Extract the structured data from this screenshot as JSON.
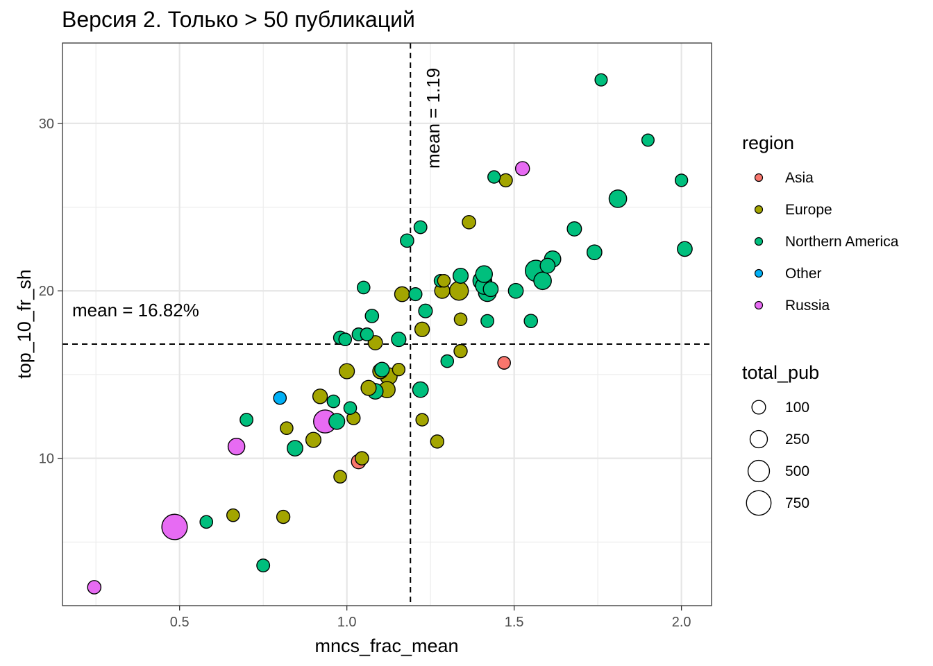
{
  "chart_data": {
    "type": "scatter",
    "title": "Версия 2. Только > 50 публикаций",
    "xlabel": "mncs_frac_mean",
    "ylabel": "top_10_fr_sh",
    "xlim": [
      0.15,
      2.09
    ],
    "ylim": [
      1.2,
      34.8
    ],
    "x_ticks": [
      0.5,
      1.0,
      1.5,
      2.0
    ],
    "x_tick_labels": [
      "0.5",
      "1.0",
      "1.5",
      "2.0"
    ],
    "y_ticks": [
      10,
      20,
      30
    ],
    "y_tick_labels": [
      "10",
      "20",
      "30"
    ],
    "grid": true,
    "mean_x": 1.19,
    "mean_y": 16.82,
    "annotations": {
      "mean_x_label": "mean = 1.19",
      "mean_y_label": "mean = 16.82%"
    },
    "color_legend": {
      "title": "region",
      "placement": "right",
      "entries": [
        {
          "name": "Asia",
          "color": "#F8766D"
        },
        {
          "name": "Europe",
          "color": "#A3A500"
        },
        {
          "name": "Northern America",
          "color": "#00BF7D"
        },
        {
          "name": "Other",
          "color": "#00B0F6"
        },
        {
          "name": "Russia",
          "color": "#E76BF3"
        }
      ]
    },
    "size_legend": {
      "title": "total_pub",
      "placement": "right",
      "entries": [
        {
          "label": "100",
          "value": 100
        },
        {
          "label": "250",
          "value": 250
        },
        {
          "label": "500",
          "value": 500
        },
        {
          "label": "750",
          "value": 750
        }
      ]
    },
    "points": [
      {
        "x": 1.76,
        "y": 32.6,
        "region": "Northern America",
        "total_pub": 60
      },
      {
        "x": 1.9,
        "y": 29.0,
        "region": "Northern America",
        "total_pub": 60
      },
      {
        "x": 2.0,
        "y": 26.6,
        "region": "Northern America",
        "total_pub": 65
      },
      {
        "x": 1.44,
        "y": 26.8,
        "region": "Northern America",
        "total_pub": 65
      },
      {
        "x": 1.475,
        "y": 26.6,
        "region": "Europe",
        "total_pub": 85
      },
      {
        "x": 1.525,
        "y": 27.3,
        "region": "Russia",
        "total_pub": 110
      },
      {
        "x": 1.81,
        "y": 25.5,
        "region": "Northern America",
        "total_pub": 260
      },
      {
        "x": 1.365,
        "y": 24.1,
        "region": "Europe",
        "total_pub": 90
      },
      {
        "x": 1.22,
        "y": 23.8,
        "region": "Northern America",
        "total_pub": 75
      },
      {
        "x": 1.18,
        "y": 23.0,
        "region": "Northern America",
        "total_pub": 90
      },
      {
        "x": 1.68,
        "y": 23.7,
        "region": "Northern America",
        "total_pub": 120
      },
      {
        "x": 1.74,
        "y": 22.3,
        "region": "Northern America",
        "total_pub": 140
      },
      {
        "x": 2.01,
        "y": 22.5,
        "region": "Northern America",
        "total_pub": 140
      },
      {
        "x": 1.615,
        "y": 21.9,
        "region": "Northern America",
        "total_pub": 200
      },
      {
        "x": 1.6,
        "y": 21.5,
        "region": "Northern America",
        "total_pub": 140
      },
      {
        "x": 1.565,
        "y": 21.2,
        "region": "Northern America",
        "total_pub": 480
      },
      {
        "x": 1.585,
        "y": 20.6,
        "region": "Northern America",
        "total_pub": 260
      },
      {
        "x": 1.41,
        "y": 21.0,
        "region": "Northern America",
        "total_pub": 220
      },
      {
        "x": 1.405,
        "y": 20.6,
        "region": "Northern America",
        "total_pub": 330
      },
      {
        "x": 1.41,
        "y": 20.3,
        "region": "Northern America",
        "total_pub": 230
      },
      {
        "x": 1.43,
        "y": 20.1,
        "region": "Northern America",
        "total_pub": 140
      },
      {
        "x": 1.42,
        "y": 19.9,
        "region": "Northern America",
        "total_pub": 280
      },
      {
        "x": 1.34,
        "y": 20.9,
        "region": "Northern America",
        "total_pub": 150
      },
      {
        "x": 1.335,
        "y": 20.0,
        "region": "Europe",
        "total_pub": 330
      },
      {
        "x": 1.28,
        "y": 20.6,
        "region": "Northern America",
        "total_pub": 70
      },
      {
        "x": 1.29,
        "y": 20.6,
        "region": "Europe",
        "total_pub": 70
      },
      {
        "x": 1.285,
        "y": 20.0,
        "region": "Europe",
        "total_pub": 150
      },
      {
        "x": 1.505,
        "y": 20.0,
        "region": "Northern America",
        "total_pub": 140
      },
      {
        "x": 1.05,
        "y": 20.2,
        "region": "Northern America",
        "total_pub": 70
      },
      {
        "x": 1.165,
        "y": 19.8,
        "region": "Europe",
        "total_pub": 140
      },
      {
        "x": 1.205,
        "y": 19.8,
        "region": "Northern America",
        "total_pub": 80
      },
      {
        "x": 1.075,
        "y": 18.5,
        "region": "Northern America",
        "total_pub": 90
      },
      {
        "x": 1.235,
        "y": 18.8,
        "region": "Northern America",
        "total_pub": 100
      },
      {
        "x": 1.34,
        "y": 18.3,
        "region": "Europe",
        "total_pub": 70
      },
      {
        "x": 1.42,
        "y": 18.2,
        "region": "Northern America",
        "total_pub": 75
      },
      {
        "x": 1.55,
        "y": 18.2,
        "region": "Northern America",
        "total_pub": 90
      },
      {
        "x": 0.98,
        "y": 17.2,
        "region": "Northern America",
        "total_pub": 85
      },
      {
        "x": 0.995,
        "y": 17.1,
        "region": "Northern America",
        "total_pub": 70
      },
      {
        "x": 1.035,
        "y": 17.4,
        "region": "Northern America",
        "total_pub": 75
      },
      {
        "x": 1.06,
        "y": 17.4,
        "region": "Northern America",
        "total_pub": 75
      },
      {
        "x": 1.085,
        "y": 16.9,
        "region": "Europe",
        "total_pub": 120
      },
      {
        "x": 1.155,
        "y": 17.1,
        "region": "Northern America",
        "total_pub": 125
      },
      {
        "x": 1.225,
        "y": 17.7,
        "region": "Europe",
        "total_pub": 130
      },
      {
        "x": 1.34,
        "y": 16.4,
        "region": "Europe",
        "total_pub": 85
      },
      {
        "x": 1.3,
        "y": 15.8,
        "region": "Northern America",
        "total_pub": 70
      },
      {
        "x": 1.47,
        "y": 15.7,
        "region": "Asia",
        "total_pub": 70
      },
      {
        "x": 1.0,
        "y": 15.2,
        "region": "Europe",
        "total_pub": 150
      },
      {
        "x": 1.1,
        "y": 15.2,
        "region": "Europe",
        "total_pub": 150
      },
      {
        "x": 1.105,
        "y": 15.3,
        "region": "Northern America",
        "total_pub": 130
      },
      {
        "x": 1.125,
        "y": 14.9,
        "region": "Europe",
        "total_pub": 230
      },
      {
        "x": 1.155,
        "y": 15.3,
        "region": "Europe",
        "total_pub": 65
      },
      {
        "x": 1.065,
        "y": 14.2,
        "region": "Europe",
        "total_pub": 150
      },
      {
        "x": 1.085,
        "y": 14.0,
        "region": "Northern America",
        "total_pub": 170
      },
      {
        "x": 1.12,
        "y": 14.1,
        "region": "Europe",
        "total_pub": 200
      },
      {
        "x": 1.22,
        "y": 14.1,
        "region": "Northern America",
        "total_pub": 170
      },
      {
        "x": 0.92,
        "y": 13.7,
        "region": "Europe",
        "total_pub": 130
      },
      {
        "x": 0.96,
        "y": 13.4,
        "region": "Northern America",
        "total_pub": 70
      },
      {
        "x": 1.01,
        "y": 13.0,
        "region": "Northern America",
        "total_pub": 70
      },
      {
        "x": 0.8,
        "y": 13.6,
        "region": "Other",
        "total_pub": 70
      },
      {
        "x": 0.7,
        "y": 12.3,
        "region": "Northern America",
        "total_pub": 75
      },
      {
        "x": 0.82,
        "y": 11.8,
        "region": "Europe",
        "total_pub": 70
      },
      {
        "x": 0.97,
        "y": 12.2,
        "region": "Northern America",
        "total_pub": 180
      },
      {
        "x": 0.935,
        "y": 12.2,
        "region": "Russia",
        "total_pub": 620
      },
      {
        "x": 1.02,
        "y": 12.4,
        "region": "Europe",
        "total_pub": 85
      },
      {
        "x": 1.225,
        "y": 12.3,
        "region": "Europe",
        "total_pub": 65
      },
      {
        "x": 0.9,
        "y": 11.1,
        "region": "Europe",
        "total_pub": 150
      },
      {
        "x": 0.845,
        "y": 10.6,
        "region": "Northern America",
        "total_pub": 170
      },
      {
        "x": 0.67,
        "y": 10.7,
        "region": "Russia",
        "total_pub": 220
      },
      {
        "x": 1.27,
        "y": 11.0,
        "region": "Europe",
        "total_pub": 85
      },
      {
        "x": 1.045,
        "y": 10.0,
        "region": "Europe",
        "total_pub": 90
      },
      {
        "x": 1.035,
        "y": 9.8,
        "region": "Asia",
        "total_pub": 120
      },
      {
        "x": 0.98,
        "y": 8.9,
        "region": "Europe",
        "total_pub": 70
      },
      {
        "x": 0.485,
        "y": 5.9,
        "region": "Russia",
        "total_pub": 820
      },
      {
        "x": 0.58,
        "y": 6.2,
        "region": "Northern America",
        "total_pub": 70
      },
      {
        "x": 0.66,
        "y": 6.6,
        "region": "Europe",
        "total_pub": 70
      },
      {
        "x": 0.81,
        "y": 6.5,
        "region": "Europe",
        "total_pub": 85
      },
      {
        "x": 0.75,
        "y": 3.6,
        "region": "Northern America",
        "total_pub": 75
      },
      {
        "x": 0.245,
        "y": 2.3,
        "region": "Russia",
        "total_pub": 90
      }
    ]
  }
}
